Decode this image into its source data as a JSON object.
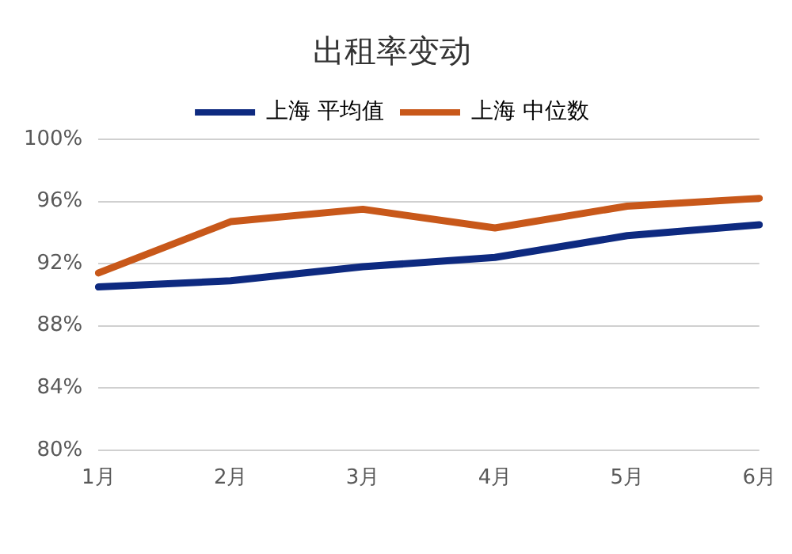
{
  "chart_data": {
    "type": "line",
    "title": "出租率变动",
    "categories": [
      "1月",
      "2月",
      "3月",
      "4月",
      "5月",
      "6月"
    ],
    "series": [
      {
        "name": "上海 平均值",
        "color": "#0e2a80",
        "values": [
          90.5,
          90.9,
          91.8,
          92.4,
          93.8,
          94.5
        ]
      },
      {
        "name": "上海 中位数",
        "color": "#c8581a",
        "values": [
          91.4,
          94.7,
          95.5,
          94.3,
          95.7,
          96.2
        ]
      }
    ],
    "ylim": [
      80,
      100
    ],
    "yticks": [
      {
        "value": 80,
        "label": "80%"
      },
      {
        "value": 84,
        "label": "84%"
      },
      {
        "value": 88,
        "label": "88%"
      },
      {
        "value": 92,
        "label": "92%"
      },
      {
        "value": 96,
        "label": "96%"
      },
      {
        "value": 100,
        "label": "100%"
      }
    ],
    "grid": "y",
    "legend": "top",
    "marker": "none",
    "line_style": "solid"
  }
}
